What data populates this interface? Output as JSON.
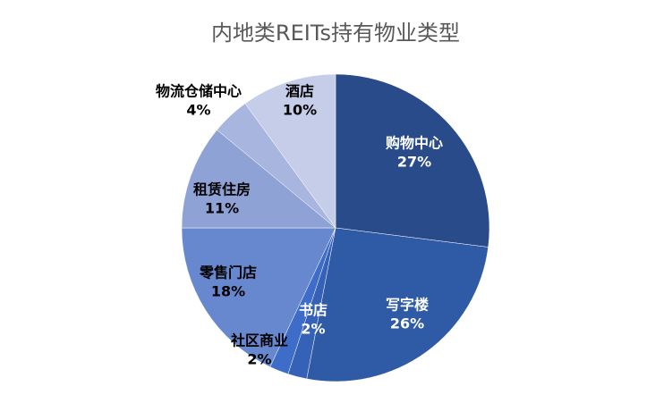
{
  "chart_data": {
    "type": "pie",
    "title": "内地类REITs持有物业类型",
    "categories": [
      "购物中心",
      "写字楼",
      "书店",
      "社区商业",
      "零售门店",
      "租赁住房",
      "物流仓储中心",
      "酒店"
    ],
    "values": [
      27,
      26,
      2,
      2,
      18,
      11,
      4,
      10
    ],
    "value_labels": [
      "27%",
      "26%",
      "2%",
      "2%",
      "18%",
      "11%",
      "4%",
      "10%"
    ],
    "colors": [
      "#2a4b8a",
      "#2f5aa5",
      "#3562b6",
      "#3e6dc9",
      "#6787cf",
      "#8ea2d6",
      "#a8b5de",
      "#c6cde9"
    ]
  }
}
